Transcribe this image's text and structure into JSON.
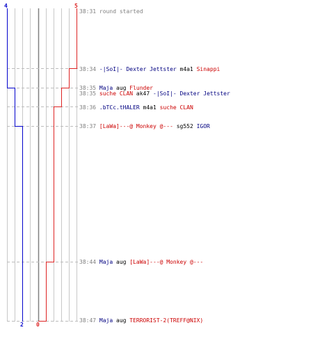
{
  "colors": {
    "blue": "#0000cc",
    "red": "#dd2222",
    "grid": "#c8c8c8",
    "grid_dark": "#808080",
    "dash": "#bbbbbb"
  },
  "scores": {
    "blue_start": "4",
    "red_start": "5",
    "blue_end": "2",
    "red_end": "0"
  },
  "events": [
    {
      "time": "38:31",
      "parts": [
        {
          "text": "round started",
          "c": "gray"
        }
      ]
    },
    {
      "time": "38:34",
      "parts": [
        {
          "text": "-|SoI|- Dexter Jettster",
          "c": "blue"
        },
        {
          "text": " m4a1 ",
          "c": "k"
        },
        {
          "text": "Sinappi",
          "c": "red"
        }
      ]
    },
    {
      "time": "38:35",
      "parts": [
        {
          "text": "Maja",
          "c": "blue"
        },
        {
          "text": " aug ",
          "c": "k"
        },
        {
          "text": "Flunder",
          "c": "red"
        }
      ]
    },
    {
      "time": "38:35",
      "parts": [
        {
          "text": "suche CLAN",
          "c": "red"
        },
        {
          "text": " ak47 ",
          "c": "k"
        },
        {
          "text": "-|SoI|- Dexter Jettster",
          "c": "blue"
        }
      ]
    },
    {
      "time": "38:36",
      "parts": [
        {
          "text": ".bTCc.tHALER",
          "c": "blue"
        },
        {
          "text": " m4a1 ",
          "c": "k"
        },
        {
          "text": "suche CLAN",
          "c": "red"
        }
      ]
    },
    {
      "time": "38:37",
      "parts": [
        {
          "text": "[LaWa]---@ Monkey @---",
          "c": "red"
        },
        {
          "text": " sg552 ",
          "c": "k"
        },
        {
          "text": "IGOR",
          "c": "blue"
        }
      ]
    },
    {
      "time": "38:44",
      "parts": [
        {
          "text": "Maja",
          "c": "blue"
        },
        {
          "text": " aug ",
          "c": "k"
        },
        {
          "text": "[LaWa]---@ Monkey @---",
          "c": "red"
        }
      ]
    },
    {
      "time": "38:47",
      "parts": [
        {
          "text": "Maja",
          "c": "blue"
        },
        {
          "text": " aug ",
          "c": "k"
        },
        {
          "text": "TERRORIST-2(TREFF@NIX)",
          "c": "red"
        }
      ]
    }
  ]
}
